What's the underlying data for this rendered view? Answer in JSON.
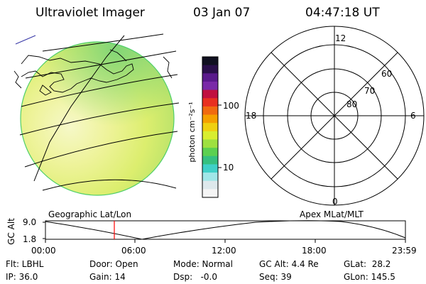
{
  "header": {
    "title": "Ultraviolet Imager",
    "date": "03 Jan 07",
    "time": "04:47:18 UT"
  },
  "colorbar": {
    "unit_label": "photon cm⁻²s⁻¹",
    "ticks": [
      "100",
      "10"
    ],
    "colors": [
      "#101020",
      "#2a0f4a",
      "#5a1a8c",
      "#7a2aa8",
      "#c01040",
      "#e83020",
      "#f06a10",
      "#f5a000",
      "#f0d010",
      "#d8ee30",
      "#9ee040",
      "#5cd050",
      "#36c080",
      "#40d0c8",
      "#a0e6e8",
      "#dde8ec",
      "#f5f5f5"
    ]
  },
  "polar_grid": {
    "mlt_labels": {
      "top": "12",
      "left": "18",
      "right": "6",
      "bottom": "0"
    },
    "lat_labels": [
      "60",
      "70",
      "80"
    ]
  },
  "map": {
    "left_label": "Geographic Lat/Lon",
    "right_label": "Apex MLat/MLT"
  },
  "altitude_plot": {
    "axis_title": "GC Alt",
    "y_ticks": [
      "9.0",
      "1.8"
    ],
    "x_ticks": [
      "00:00",
      "06:00",
      "12:00",
      "18:00",
      "23:59"
    ],
    "current_time_hours": 4.79
  },
  "info": {
    "flt": "Flt: LBHL",
    "ip": "IP: 36.0",
    "door": "Door: Open",
    "gain": "Gain: 14",
    "mode": "Mode: Normal",
    "dsp": "Dsp:   -0.0",
    "gcalt": "GC Alt: 4.4 Re",
    "seq": "Seq: 39",
    "glat": "GLat:  28.2",
    "glon": "GLon: 145.5"
  }
}
